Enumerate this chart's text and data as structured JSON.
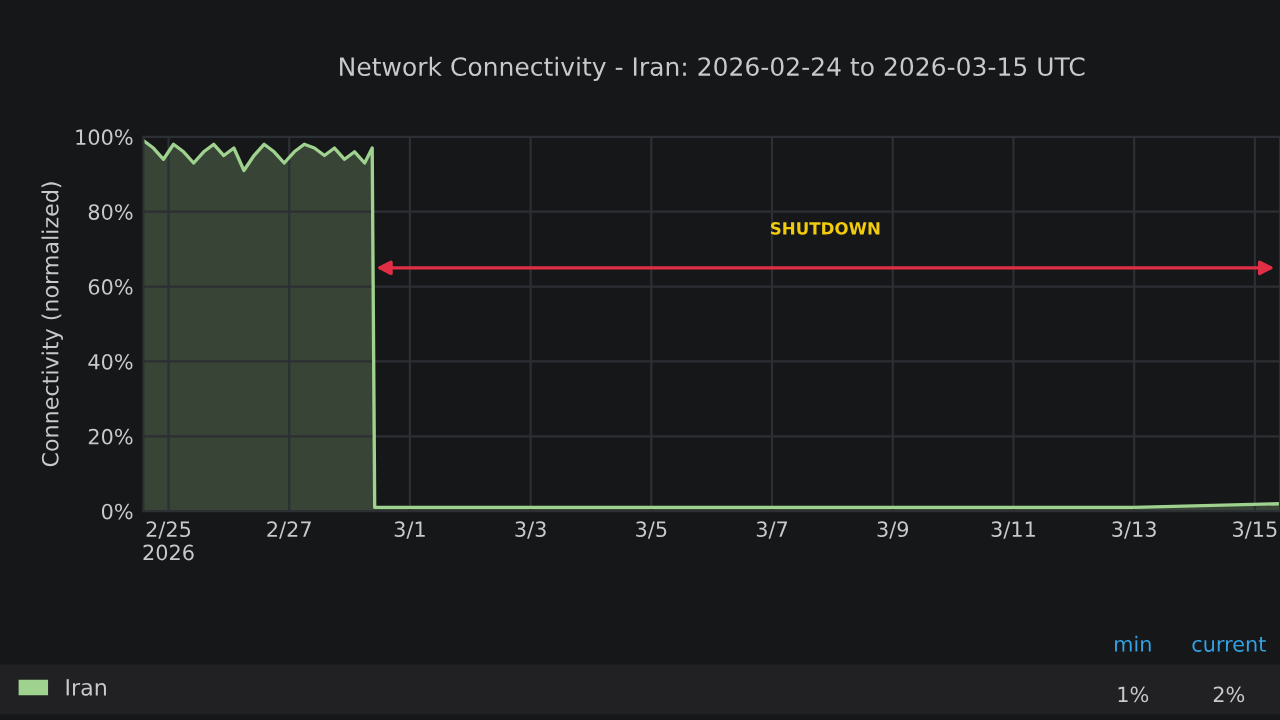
{
  "chart_data": {
    "type": "area",
    "title": "Network Connectivity - Iran: 2026-02-24 to 2026-03-15 UTC",
    "ylabel": "Connectivity (normalized)",
    "series": [
      {
        "name": "Iran",
        "color": "#9fd18f",
        "x": [
          "2026-02-24T14:00",
          "2026-02-24T18:00",
          "2026-02-24T22:00",
          "2026-02-25T02:00",
          "2026-02-25T06:00",
          "2026-02-25T10:00",
          "2026-02-25T14:00",
          "2026-02-25T18:00",
          "2026-02-25T22:00",
          "2026-02-26T02:00",
          "2026-02-26T06:00",
          "2026-02-26T10:00",
          "2026-02-26T14:00",
          "2026-02-26T18:00",
          "2026-02-26T22:00",
          "2026-02-27T02:00",
          "2026-02-27T06:00",
          "2026-02-27T10:00",
          "2026-02-27T14:00",
          "2026-02-27T18:00",
          "2026-02-27T22:00",
          "2026-02-28T02:00",
          "2026-02-28T06:00",
          "2026-02-28T09:00",
          "2026-02-28T10:00",
          "2026-03-01T00:00",
          "2026-03-03T00:00",
          "2026-03-05T00:00",
          "2026-03-07T00:00",
          "2026-03-09T00:00",
          "2026-03-11T00:00",
          "2026-03-13T00:00",
          "2026-03-15T10:00"
        ],
        "values": [
          99,
          97,
          94,
          98,
          96,
          93,
          96,
          98,
          95,
          97,
          91,
          95,
          98,
          96,
          93,
          96,
          98,
          97,
          95,
          97,
          94,
          96,
          93,
          97,
          1,
          1,
          1,
          1,
          1,
          1,
          1,
          1,
          2
        ]
      }
    ],
    "xlim": [
      "2026-02-24T14:00",
      "2026-03-15T10:00"
    ],
    "xticks": [
      {
        "value": "2026-02-25",
        "label": "2/25\n2026"
      },
      {
        "value": "2026-02-27",
        "label": "2/27"
      },
      {
        "value": "2026-03-01",
        "label": "3/1"
      },
      {
        "value": "2026-03-03",
        "label": "3/3"
      },
      {
        "value": "2026-03-05",
        "label": "3/5"
      },
      {
        "value": "2026-03-07",
        "label": "3/7"
      },
      {
        "value": "2026-03-09",
        "label": "3/9"
      },
      {
        "value": "2026-03-11",
        "label": "3/11"
      },
      {
        "value": "2026-03-13",
        "label": "3/13"
      },
      {
        "value": "2026-03-15",
        "label": "3/15"
      }
    ],
    "ylim": [
      0,
      100
    ],
    "yticks": [
      {
        "value": 0,
        "label": "0%"
      },
      {
        "value": 20,
        "label": "20%"
      },
      {
        "value": 40,
        "label": "40%"
      },
      {
        "value": 60,
        "label": "60%"
      },
      {
        "value": 80,
        "label": "80%"
      },
      {
        "value": 100,
        "label": "100%"
      }
    ],
    "grid": true,
    "legend": "bottom",
    "annotations": [
      "SHUTDOWN",
      "min",
      "current",
      "1%",
      "2%"
    ]
  }
}
